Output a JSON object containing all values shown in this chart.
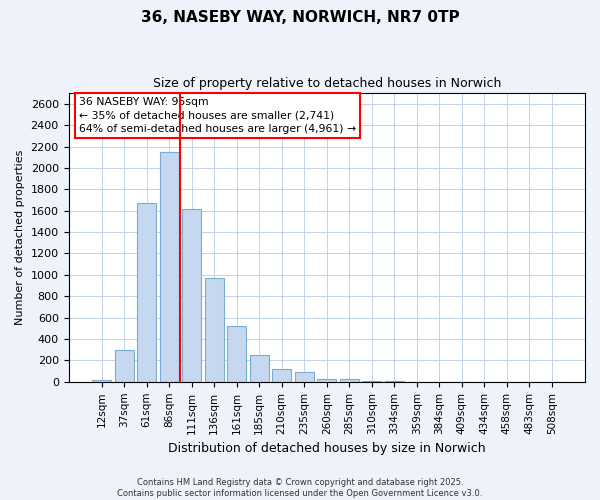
{
  "title": "36, NASEBY WAY, NORWICH, NR7 0TP",
  "subtitle": "Size of property relative to detached houses in Norwich",
  "xlabel": "Distribution of detached houses by size in Norwich",
  "ylabel": "Number of detached properties",
  "annotation_title": "36 NASEBY WAY: 95sqm",
  "annotation_line1": "← 35% of detached houses are smaller (2,741)",
  "annotation_line2": "64% of semi-detached houses are larger (4,961) →",
  "categories": [
    "12sqm",
    "37sqm",
    "61sqm",
    "86sqm",
    "111sqm",
    "136sqm",
    "161sqm",
    "185sqm",
    "210sqm",
    "235sqm",
    "260sqm",
    "285sqm",
    "310sqm",
    "334sqm",
    "359sqm",
    "384sqm",
    "409sqm",
    "434sqm",
    "458sqm",
    "483sqm",
    "508sqm"
  ],
  "values": [
    20,
    300,
    1670,
    2150,
    1620,
    970,
    520,
    250,
    120,
    95,
    30,
    30,
    5,
    5,
    2,
    2,
    1,
    1,
    0,
    0,
    0
  ],
  "bar_color": "#c5d8f0",
  "bar_edge_color": "#7aadd4",
  "red_line_x": 3.5,
  "ylim": [
    0,
    2700
  ],
  "yticks": [
    0,
    200,
    400,
    600,
    800,
    1000,
    1200,
    1400,
    1600,
    1800,
    2000,
    2200,
    2400,
    2600
  ],
  "footer_line1": "Contains HM Land Registry data © Crown copyright and database right 2025.",
  "footer_line2": "Contains public sector information licensed under the Open Government Licence v3.0.",
  "background_color": "#eef2fa",
  "plot_background": "#ffffff",
  "grid_color": "#b8cce4"
}
